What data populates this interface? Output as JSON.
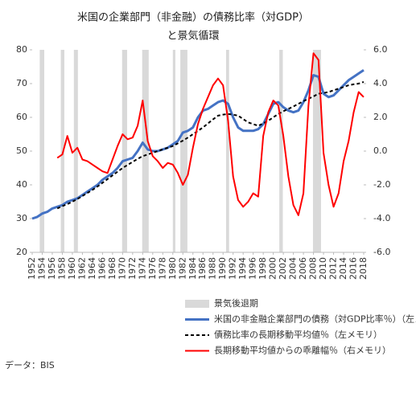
{
  "chart_data": {
    "type": "line",
    "title": [
      "米国の企業部門（非金融）の債務比率（対GDP）",
      "と景気循環"
    ],
    "x": [
      1952,
      1953,
      1954,
      1955,
      1956,
      1957,
      1958,
      1959,
      1960,
      1961,
      1962,
      1963,
      1964,
      1965,
      1966,
      1967,
      1968,
      1969,
      1970,
      1971,
      1972,
      1973,
      1974,
      1975,
      1976,
      1977,
      1978,
      1979,
      1980,
      1981,
      1982,
      1983,
      1984,
      1985,
      1986,
      1987,
      1988,
      1989,
      1990,
      1991,
      1992,
      1993,
      1994,
      1995,
      1996,
      1997,
      1998,
      1999,
      2000,
      2001,
      2002,
      2003,
      2004,
      2005,
      2006,
      2007,
      2008,
      2009,
      2010,
      2011,
      2012,
      2013,
      2014,
      2015,
      2016,
      2017,
      2018
    ],
    "xlim": [
      1952,
      2018
    ],
    "xticks": [
      1952,
      1954,
      1956,
      1958,
      1960,
      1962,
      1964,
      1966,
      1968,
      1970,
      1972,
      1974,
      1976,
      1978,
      1980,
      1982,
      1984,
      1986,
      1988,
      1990,
      1992,
      1994,
      1996,
      1998,
      2000,
      2002,
      2004,
      2006,
      2008,
      2010,
      2012,
      2014,
      2016,
      2018
    ],
    "ylim": [
      20,
      80
    ],
    "yticks": [
      20,
      30,
      40,
      50,
      60,
      70,
      80
    ],
    "y2lim": [
      -6,
      6
    ],
    "y2ticks": [
      {
        "value": -6,
        "label": "-6.0"
      },
      {
        "value": -4,
        "label": "-4.0"
      },
      {
        "value": -2,
        "label": "-2.0"
      },
      {
        "value": 0,
        "label": "0.0"
      },
      {
        "value": 2,
        "label": "2.0"
      },
      {
        "value": 4,
        "label": "4.0"
      },
      {
        "value": 6,
        "label": "6.0"
      }
    ],
    "y2color": "#ff0000",
    "recession_label": "景気後退期",
    "recession_color": "#d9d9d9",
    "recessions": [
      [
        1953.5,
        1954.4
      ],
      [
        1957.7,
        1958.4
      ],
      [
        1960.3,
        1961.1
      ],
      [
        1969.9,
        1970.9
      ],
      [
        1973.9,
        1975.2
      ],
      [
        1980.0,
        1980.5
      ],
      [
        1981.5,
        1982.9
      ],
      [
        1990.6,
        1991.2
      ],
      [
        2001.2,
        2001.9
      ],
      [
        2007.9,
        2009.5
      ]
    ],
    "series": [
      {
        "name": "米国の非金融企業部門の債務（対GDP比率％）（左メモリ）",
        "color": "#4472c4",
        "width": 3,
        "dash": null,
        "axis": "y",
        "values": [
          30,
          30.5,
          31.5,
          32,
          33,
          33.5,
          34,
          35,
          35.5,
          36,
          37,
          38,
          39,
          40,
          41.5,
          42.5,
          43.5,
          45,
          47,
          47.5,
          48,
          50,
          52.5,
          50.5,
          50,
          50,
          50.5,
          51,
          52,
          53,
          55.5,
          56,
          57,
          60,
          62,
          62.5,
          63.5,
          64.5,
          65,
          64,
          60,
          57,
          56,
          56,
          56,
          56.5,
          58,
          61,
          64,
          64.5,
          63,
          62,
          61.5,
          62,
          64.5,
          68,
          72.5,
          72,
          67,
          66,
          66.5,
          68,
          69.5,
          71,
          72,
          73,
          74
        ]
      },
      {
        "name": "債務比率の長期移動平均値％（左メモリ）",
        "color": "#000000",
        "width": 2,
        "dash": "4 3",
        "axis": "y",
        "values": [
          null,
          null,
          null,
          null,
          null,
          33,
          33.7,
          34.3,
          35,
          35.8,
          36.7,
          37.6,
          38.5,
          39.5,
          40.6,
          41.7,
          42.8,
          43.9,
          45,
          45.9,
          46.8,
          47.7,
          48.5,
          49,
          49.5,
          50,
          50.5,
          51,
          51.5,
          52.3,
          53.1,
          54,
          55,
          56,
          57,
          58.2,
          59.4,
          60.5,
          60.8,
          61,
          60.8,
          60.5,
          59.5,
          58.5,
          58,
          57.5,
          58.2,
          59,
          60,
          61,
          61.8,
          62.5,
          63.2,
          64,
          64.8,
          65.5,
          66.2,
          67,
          67.2,
          67.5,
          68,
          68.5,
          69,
          69.5,
          69.8,
          70,
          70.5
        ]
      },
      {
        "name": "長期移動平均値からの乖離幅％（右メモリ）",
        "color": "#ff0000",
        "width": 2,
        "dash": null,
        "axis": "y2",
        "values": [
          null,
          null,
          null,
          null,
          null,
          -0.4,
          -0.2,
          0.9,
          -0.1,
          0.2,
          -0.5,
          -0.6,
          -0.8,
          -1.0,
          -1.2,
          -1.3,
          -0.5,
          0.3,
          1.0,
          0.7,
          0.8,
          1.5,
          3.0,
          0.6,
          -0.3,
          -0.6,
          -1.0,
          -0.7,
          -0.8,
          -1.3,
          -2.0,
          -1.4,
          0.2,
          1.6,
          2.5,
          3.2,
          3.9,
          4.3,
          3.9,
          1.8,
          -1.5,
          -2.9,
          -3.3,
          -3.0,
          -2.5,
          -2.7,
          0.9,
          2.3,
          3.0,
          2.7,
          0.9,
          -1.5,
          -3.2,
          -3.8,
          -2.5,
          2.7,
          5.8,
          5.4,
          -0.1,
          -2.0,
          -3.3,
          -2.5,
          -0.6,
          0.6,
          2.3,
          3.5,
          3.2
        ]
      }
    ],
    "source": "データ：BIS"
  }
}
